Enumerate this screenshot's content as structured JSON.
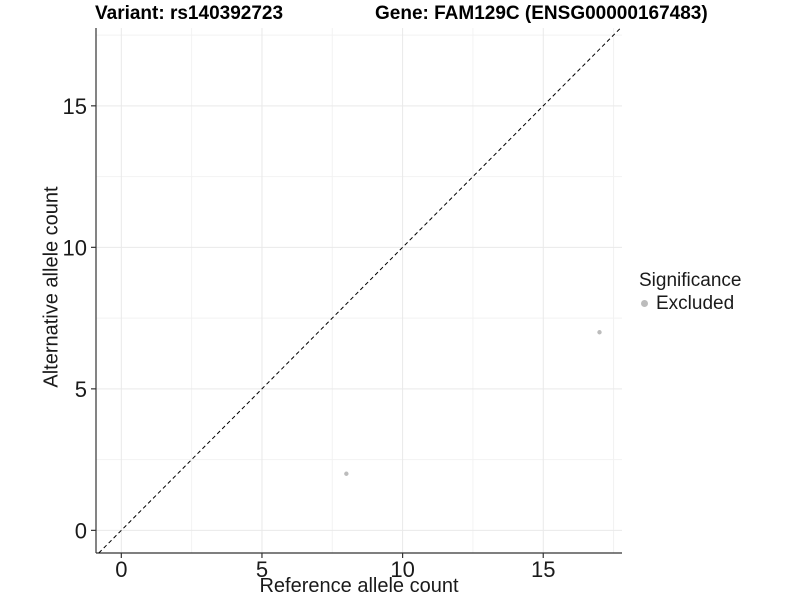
{
  "titles": {
    "variant": "Variant: rs140392723",
    "gene": "Gene: FAM129C (ENSG00000167483)"
  },
  "legend": {
    "title": "Significance",
    "items": [
      {
        "label": "Excluded",
        "color": "#bcbcbc"
      }
    ]
  },
  "colors": {
    "background": "#ffffff",
    "grid_major": "#e9e9e9",
    "grid_minor": "#f2f2f2",
    "axis_line": "#333333",
    "tick_mark": "#333333",
    "tick_label": "#1a1a1a",
    "identity_line": "#000000",
    "point": "#bcbcbc"
  },
  "chart_data": {
    "type": "scatter",
    "title": "",
    "xlabel": "Reference allele count",
    "ylabel": "Alternative allele count",
    "xlim": [
      -0.9,
      17.8
    ],
    "ylim": [
      -0.8,
      17.75
    ],
    "x_ticks": [
      0,
      5,
      10,
      15
    ],
    "y_ticks": [
      0,
      5,
      10,
      15
    ],
    "x_minor_ticks": [
      2.5,
      7.5,
      12.5,
      17.5
    ],
    "y_minor_ticks": [
      2.5,
      7.5,
      12.5,
      17.5
    ],
    "grid": true,
    "legend_position": "right",
    "identity_line": {
      "style": "dashed",
      "equation": "y = x"
    },
    "series": [
      {
        "name": "Excluded",
        "color": "#bcbcbc",
        "points": [
          {
            "x": 8,
            "y": 2
          },
          {
            "x": 17,
            "y": 7
          }
        ]
      }
    ]
  }
}
